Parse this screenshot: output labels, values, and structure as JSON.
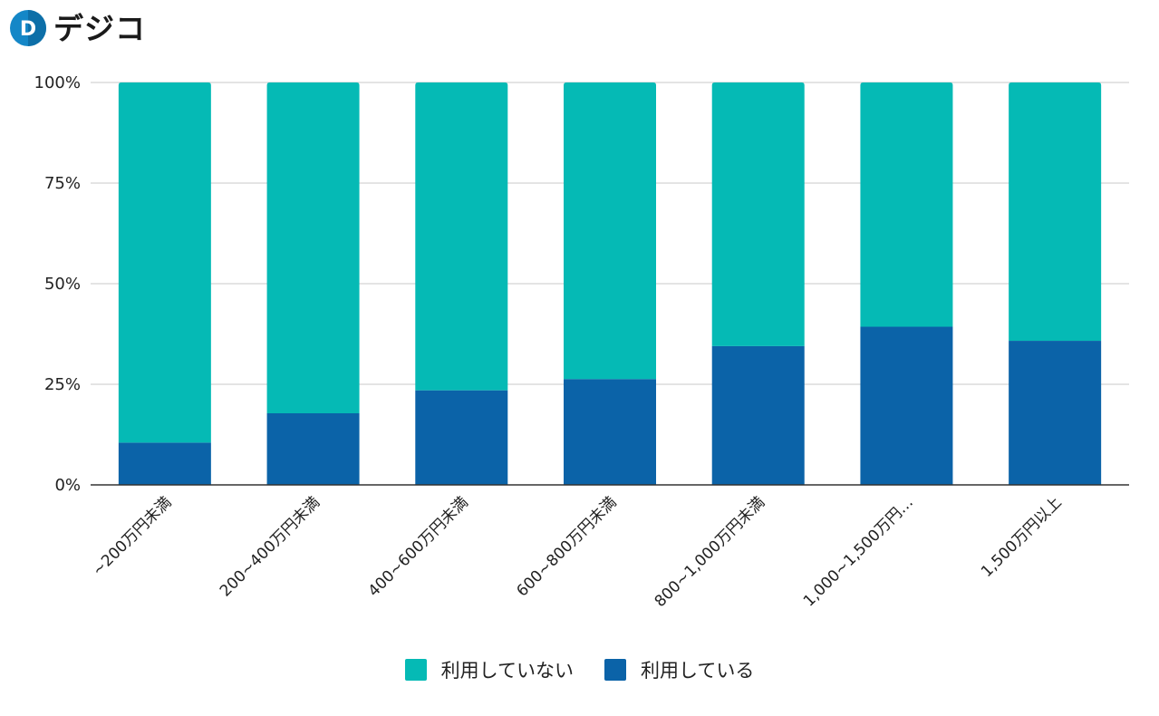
{
  "brand": {
    "logo_mark": "D",
    "logo_text": "デジコ"
  },
  "chart_data": {
    "type": "bar",
    "stacked": true,
    "categories": [
      "~200万円未満",
      "200~400万円未満",
      "400~600万円未満",
      "600~800万円未満",
      "800~1,000万円未満",
      "1,000~1,500万円…",
      "1,500万円以上"
    ],
    "series": [
      {
        "name": "利用している",
        "color": "#0b63a8",
        "values": [
          10.5,
          17.8,
          23.5,
          26.3,
          34.5,
          39.3,
          35.8
        ]
      },
      {
        "name": "利用していない",
        "color": "#05bab5",
        "values": [
          89.5,
          82.2,
          76.5,
          73.7,
          65.5,
          60.7,
          64.2
        ]
      }
    ],
    "y_ticks": [
      "0%",
      "25%",
      "50%",
      "75%",
      "100%"
    ],
    "ylim": [
      0,
      100
    ],
    "grid": true,
    "legend_position": "bottom",
    "legend_order": [
      "利用していない",
      "利用している"
    ]
  }
}
